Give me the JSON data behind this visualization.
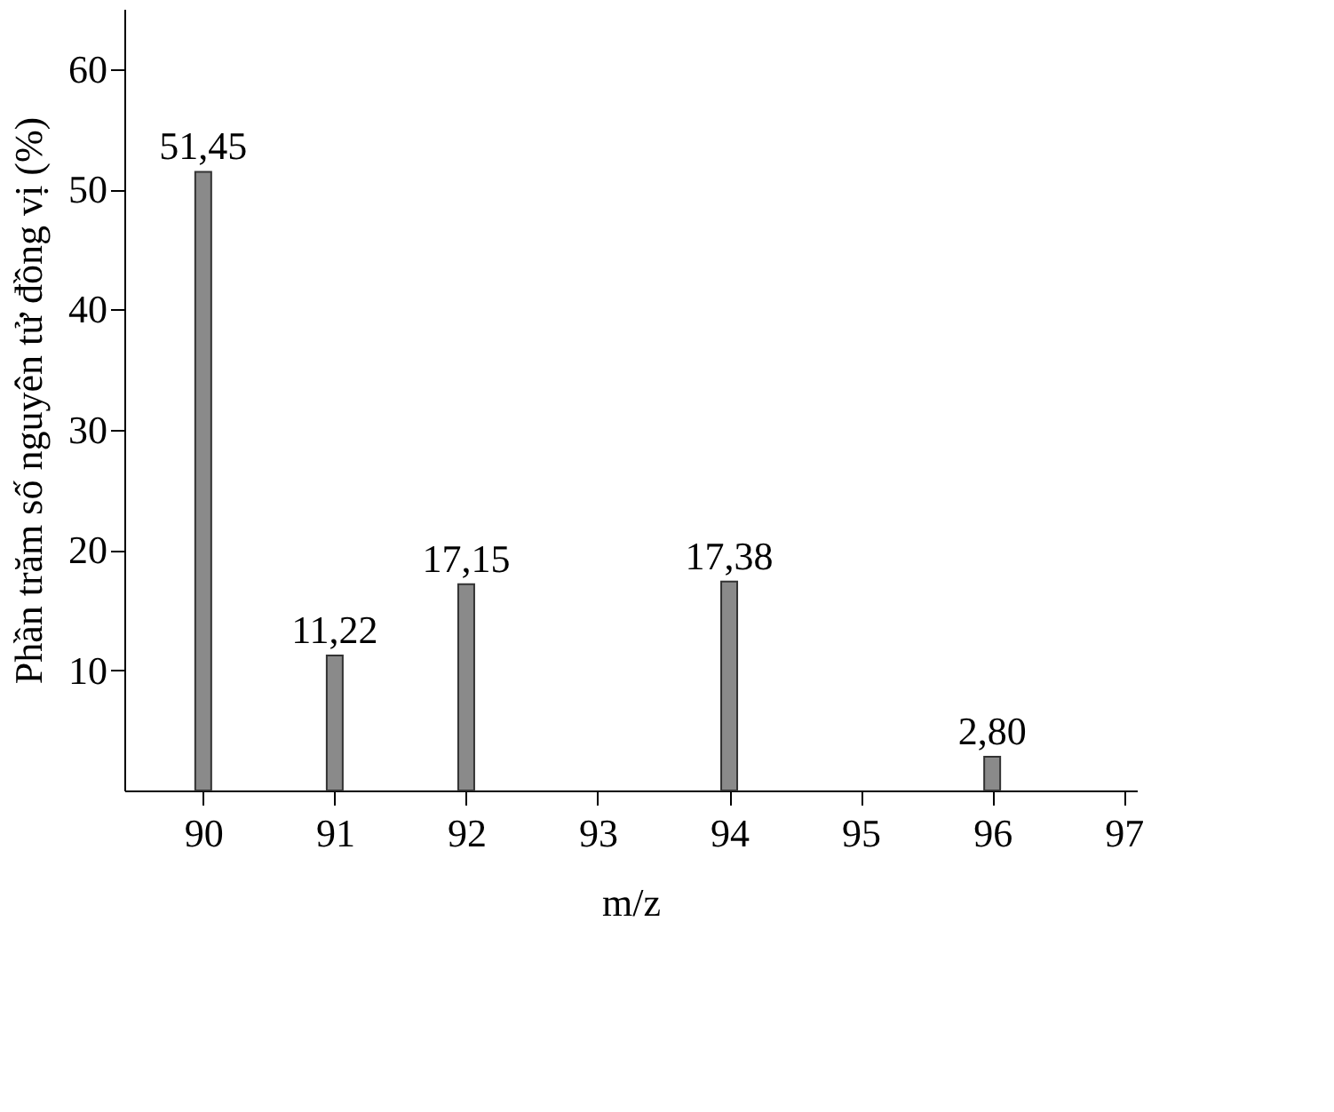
{
  "chart_data": {
    "type": "bar",
    "xlabel": "m/z",
    "ylabel": "Phần trăm số nguyên tử đồng vị (%)",
    "x": [
      90,
      91,
      92,
      94,
      96
    ],
    "values": [
      51.45,
      11.22,
      17.15,
      17.38,
      2.8
    ],
    "value_labels": [
      "51,45",
      "11,22",
      "17,15",
      "17,38",
      "2,80"
    ],
    "color": "#8a8a8a",
    "xlim": [
      89.4,
      97.1
    ],
    "xticks": [
      90,
      91,
      92,
      93,
      94,
      95,
      96,
      97
    ],
    "ylim": [
      0,
      65
    ],
    "yticks": [
      10,
      20,
      30,
      40,
      50,
      60
    ],
    "grid": false
  }
}
